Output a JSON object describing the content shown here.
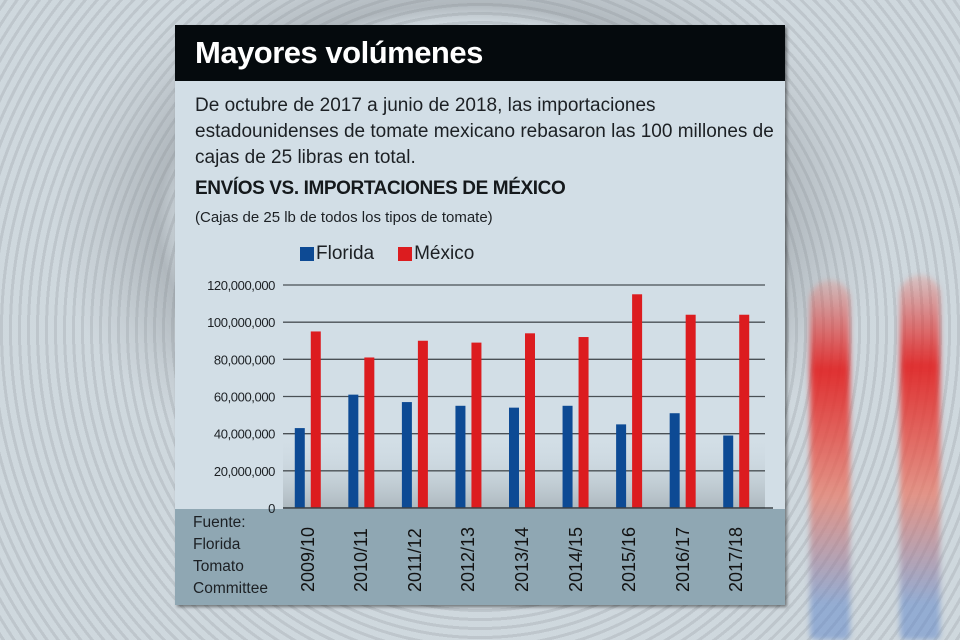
{
  "header": {
    "title": "Mayores volúmenes",
    "intro": "De octubre de 2017 a junio de 2018, las importaciones estadounidenses de tomate mexicano rebasaron las 100 millones de cajas de 25 libras en total."
  },
  "colors": {
    "florida": "#0d4a94",
    "mexico": "#dc1c1f",
    "title_bar": "#050a0d",
    "card": "#d2dee6",
    "footer_band": "#8fa7b3",
    "gridline": "#4a5055"
  },
  "chart_data": {
    "type": "bar",
    "title": "ENVÍOS VS. IMPORTACIONES DE MÉXICO",
    "subtitle": "(Cajas de 25 lb de todos los tipos de tomate)",
    "xlabel": "",
    "ylabel": "",
    "ylim": [
      0,
      120000000
    ],
    "yticks": [
      0,
      20000000,
      40000000,
      60000000,
      80000000,
      100000000,
      120000000
    ],
    "ytick_labels": [
      "0",
      "20,000,000",
      "40,000,000",
      "60,000,000",
      "80,000,000",
      "100,000,000",
      "120,000,000"
    ],
    "grid": true,
    "legend_position": "top-left",
    "categories": [
      "2009/10",
      "2010/11",
      "2011/12",
      "2012/13",
      "2013/14",
      "2014/15",
      "2015/16",
      "2016/17",
      "2017/18"
    ],
    "series": [
      {
        "name": "Florida",
        "color": "#0d4a94",
        "values": [
          43000000,
          61000000,
          57000000,
          55000000,
          54000000,
          55000000,
          45000000,
          51000000,
          39000000
        ]
      },
      {
        "name": "México",
        "color": "#dc1c1f",
        "values": [
          95000000,
          81000000,
          90000000,
          89000000,
          94000000,
          92000000,
          115000000,
          104000000,
          104000000
        ]
      }
    ],
    "source": [
      "Fuente:",
      "Florida",
      "Tomato",
      "Committee"
    ]
  }
}
